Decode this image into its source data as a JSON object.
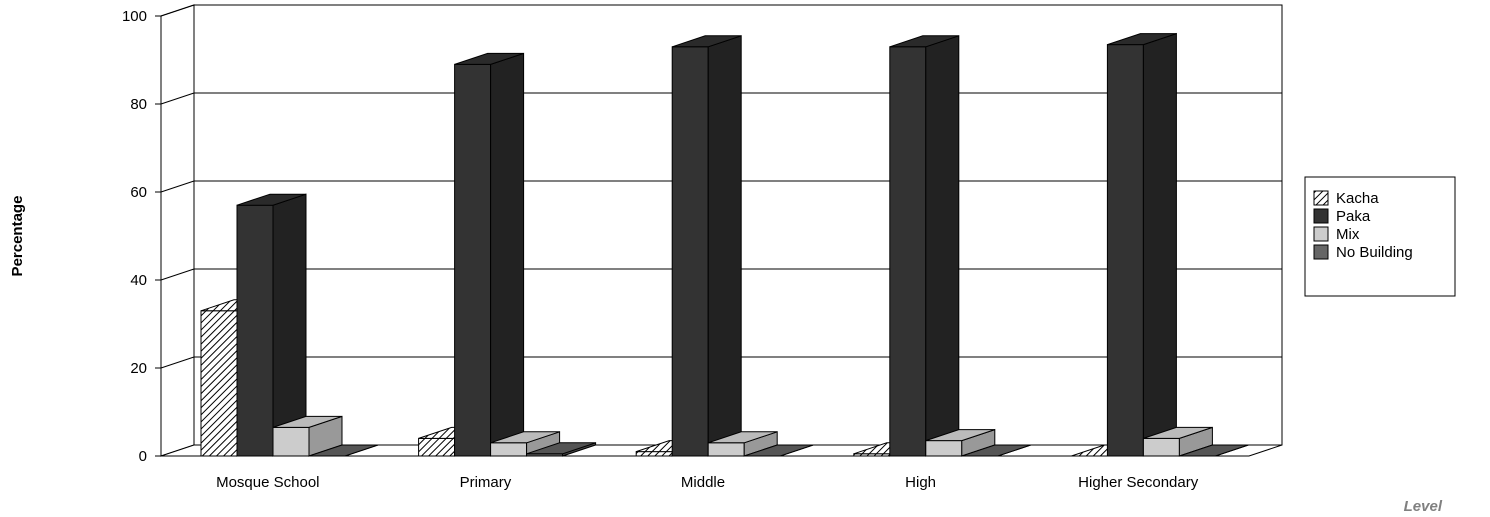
{
  "chart_data": {
    "type": "bar",
    "title": "",
    "xlabel": "Level",
    "ylabel": "Percentage",
    "ylim": [
      0,
      100
    ],
    "yticks": [
      0,
      20,
      40,
      60,
      80,
      100
    ],
    "categories": [
      "Mosque School",
      "Primary",
      "Middle",
      "High",
      "Higher Secondary"
    ],
    "series": [
      {
        "name": "Kacha",
        "values": [
          33,
          4,
          1,
          0.5,
          0
        ]
      },
      {
        "name": "Paka",
        "values": [
          57,
          89,
          93,
          93,
          93.5
        ]
      },
      {
        "name": "Mix",
        "values": [
          6.5,
          3,
          3,
          3.5,
          4
        ]
      },
      {
        "name": "No Building",
        "values": [
          0,
          0.5,
          0,
          0,
          0
        ]
      }
    ],
    "grid": true,
    "three_d": true,
    "legend_position": "right",
    "colors": {
      "Kacha": "#ffffff",
      "Paka": "#333333",
      "Mix": "#cccccc",
      "No Building": "#666666"
    }
  }
}
